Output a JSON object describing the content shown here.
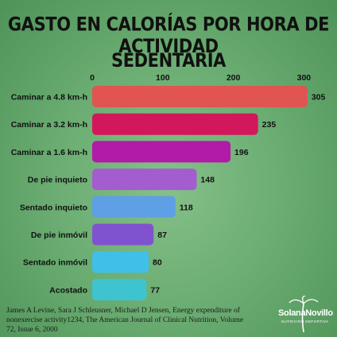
{
  "chart_data": {
    "type": "bar",
    "orientation": "horizontal",
    "title_line1": "GASTO EN CALORÍAS POR HORA DE ACTIVIDAD",
    "title_line2": "SEDENTARIA",
    "categories": [
      "Caminar a 4.8 km-h",
      "Caminar a 3.2 km-h",
      "Caminar a 1.6 km-h",
      "De pie inquieto",
      "Sentado inquieto",
      "De pie inmóvil",
      "Sentado inmóvil",
      "Acostado"
    ],
    "values": [
      305,
      235,
      196,
      148,
      118,
      87,
      80,
      77
    ],
    "data_labels": [
      "305",
      "235",
      "196",
      "148",
      "118",
      "87",
      "80",
      "77"
    ],
    "colors": [
      "#e05452",
      "#d2175c",
      "#b11ba7",
      "#a35dcf",
      "#5e9fe5",
      "#8152d0",
      "#40c0e8",
      "#3ec4cf"
    ],
    "xticks": [
      "0",
      "100",
      "200",
      "300"
    ],
    "xlim": [
      0,
      310
    ],
    "axis_position": "top",
    "grid": false
  },
  "source": {
    "text": "James A Levine, Sara J Schleusner, Michael D Jensen, Energy expenditure of nonexercise activity1234, The American Journal of Clinical Nutrition, Volume 72, Issue 6, 2000"
  },
  "logo": {
    "name": "SolanaNovillo",
    "subtitle": "NUTRICIÓN DEPORTIVA"
  }
}
